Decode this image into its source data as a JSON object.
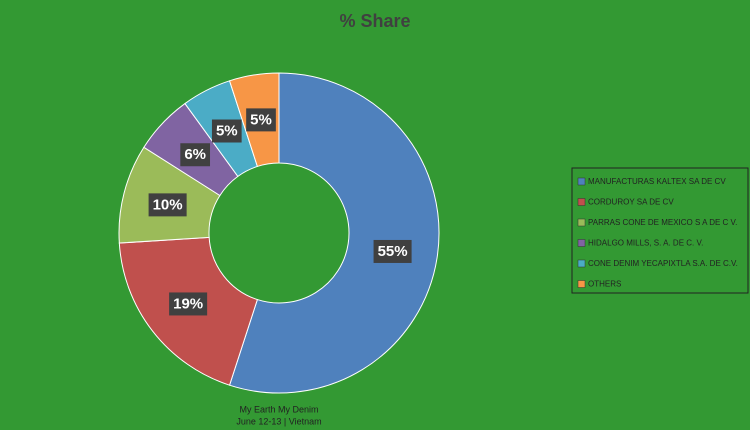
{
  "chart_data": {
    "type": "donut",
    "title": "% Share",
    "categories": [
      "MANUFACTURAS KALTEX SA DE CV",
      "CORDUROY SA DE CV",
      "PARRAS CONE DE MEXICO S A DE C V.",
      "HIDALGO MILLS, S. A. DE C. V.",
      "CONE DENIM YECAPIXTLA S.A. DE C.V.",
      "OTHERS"
    ],
    "values": [
      55,
      19,
      10,
      6,
      5,
      5
    ],
    "value_labels": [
      "55%",
      "19%",
      "10%",
      "6%",
      "5%",
      "5%"
    ],
    "colors": [
      "#4f81bd",
      "#c0504d",
      "#9bbb59",
      "#8064a2",
      "#4bacc6",
      "#f79646"
    ],
    "legend": "right",
    "footer": [
      "My Earth My Denim",
      "June 12-13 | Vietnam"
    ]
  }
}
